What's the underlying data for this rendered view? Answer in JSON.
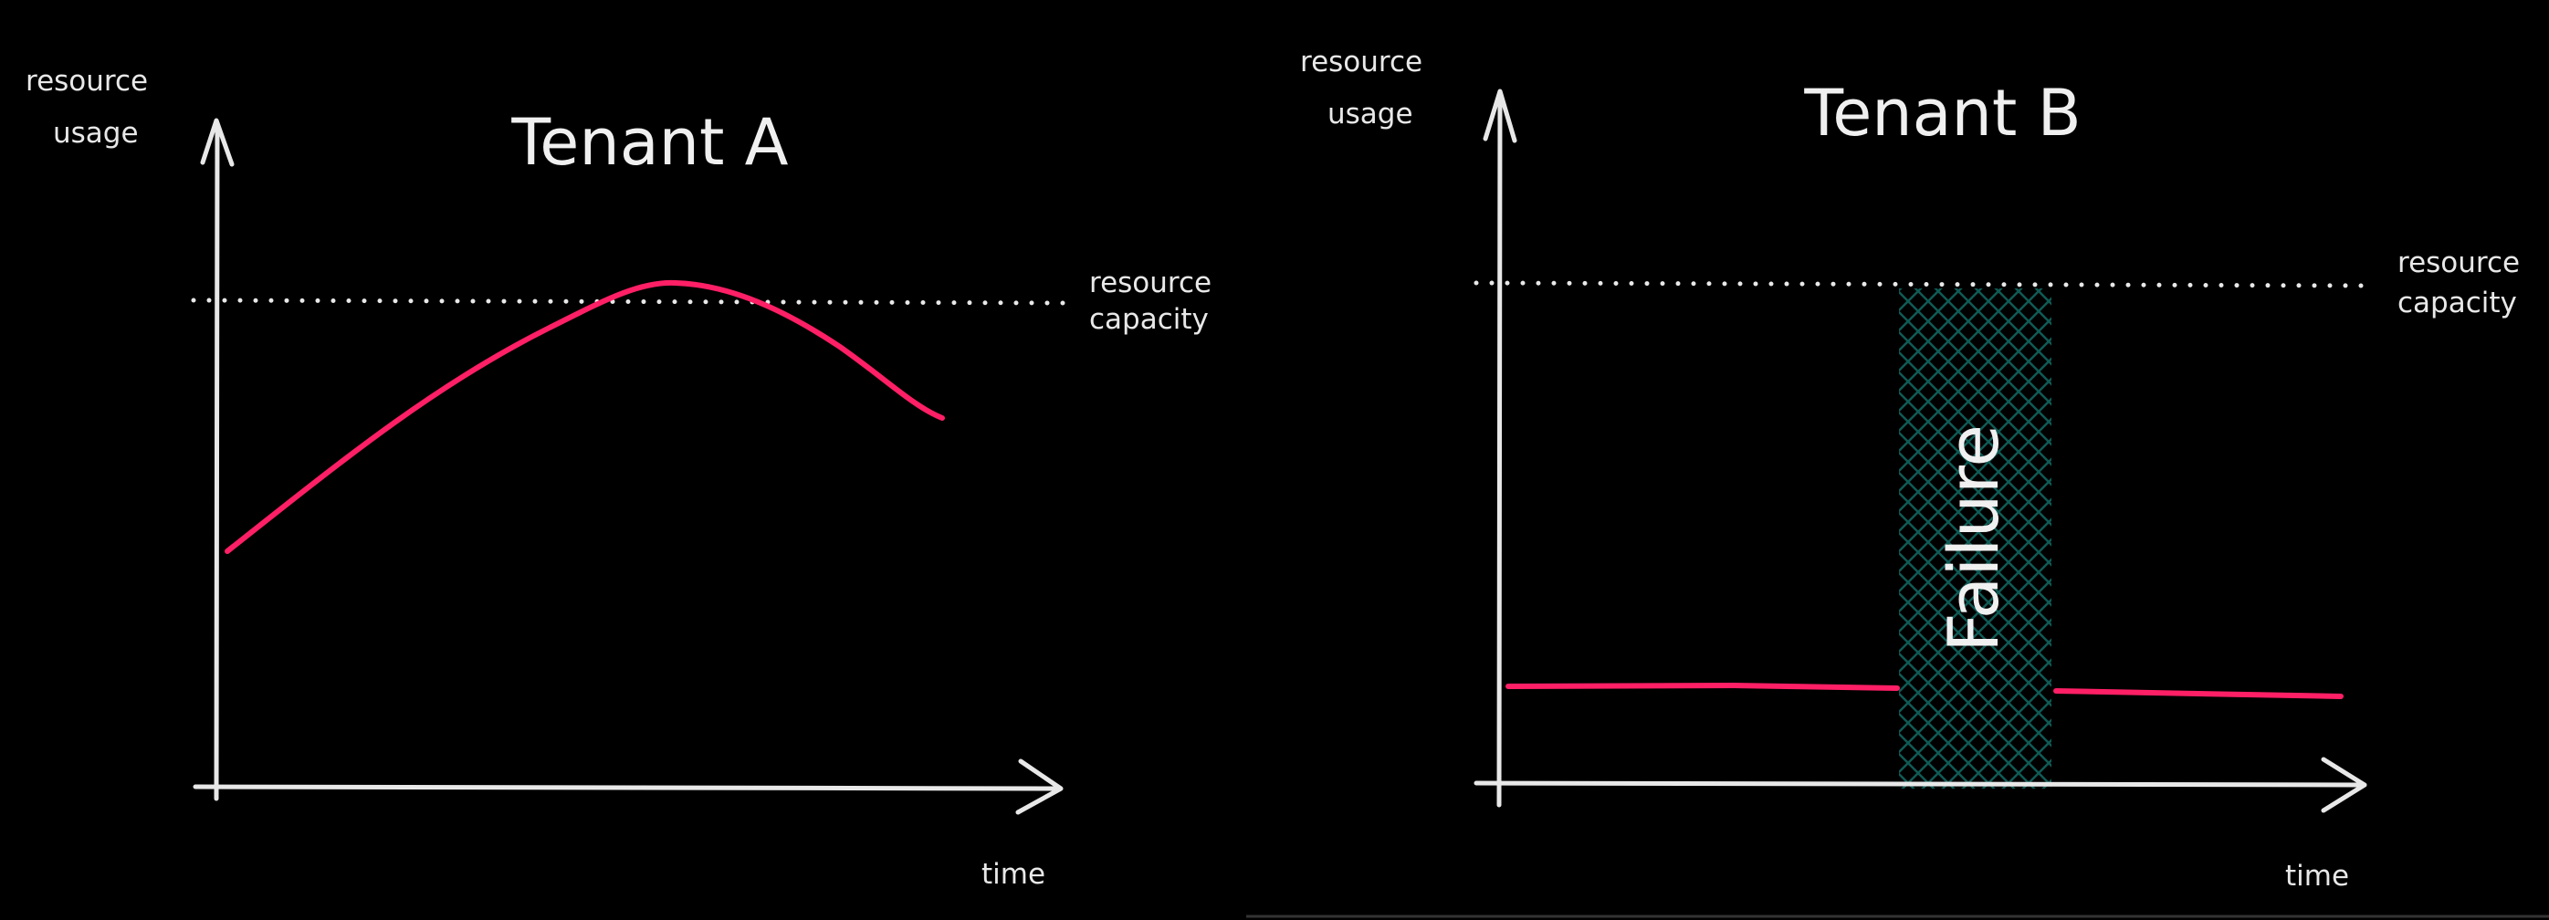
{
  "colors": {
    "background": "#000000",
    "usage_line": "#ff1f66",
    "axes": "#e8e8e8",
    "failure_hatch": "#0f5a55"
  },
  "panels": [
    {
      "title": "Tenant A",
      "y_axis_label": [
        "resource",
        "usage"
      ],
      "x_axis_label": "time",
      "capacity_label": [
        "resource",
        "capacity"
      ]
    },
    {
      "title": "Tenant B",
      "y_axis_label": [
        "resource",
        "usage"
      ],
      "x_axis_label": "time",
      "capacity_label": [
        "resource",
        "capacity"
      ],
      "failure_label": "Failure"
    }
  ]
}
